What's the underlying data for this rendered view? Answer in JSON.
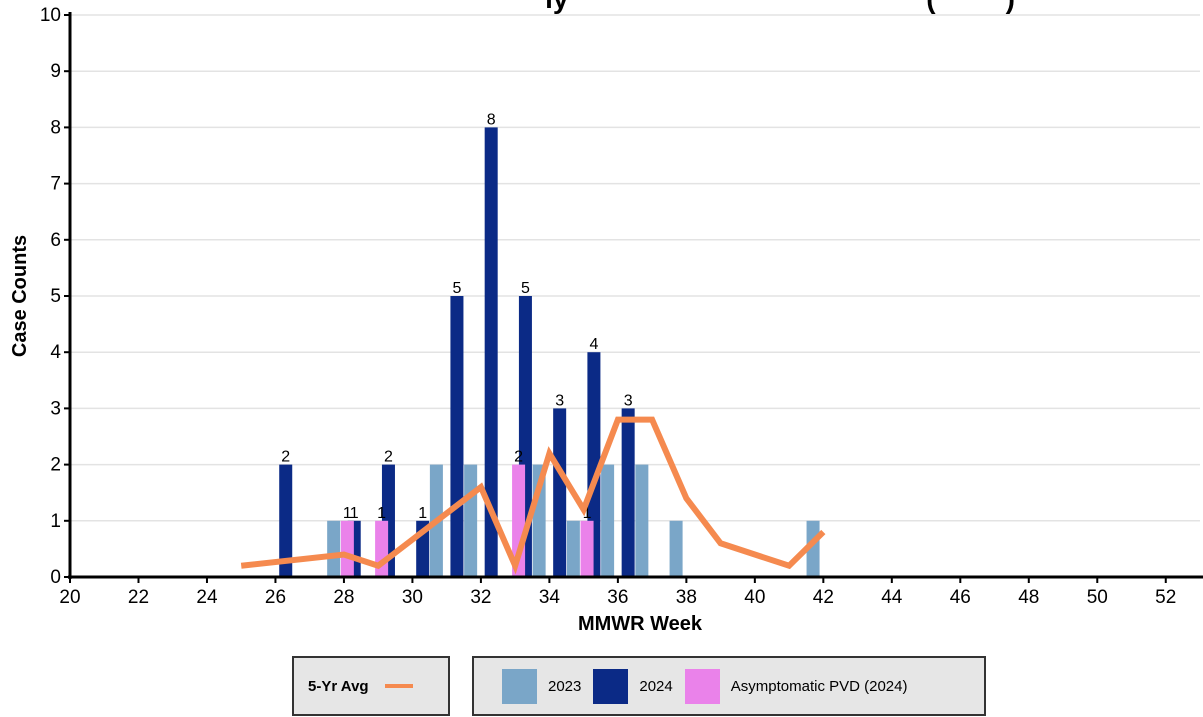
{
  "chart_data": {
    "type": "bar",
    "title": "ly                                              (         )",
    "xlabel": "MMWR Week",
    "ylabel": "Case Counts",
    "xlim": [
      20,
      53
    ],
    "ylim": [
      0,
      10
    ],
    "x_ticks": [
      "20",
      "22",
      "24",
      "26",
      "28",
      "30",
      "32",
      "34",
      "36",
      "38",
      "40",
      "42",
      "44",
      "46",
      "48",
      "50",
      "52"
    ],
    "y_ticks": [
      "0",
      "1",
      "2",
      "3",
      "4",
      "5",
      "6",
      "7",
      "8",
      "9",
      "10"
    ],
    "grid": "horizontal",
    "legend_position": "bottom",
    "series": [
      {
        "name": "2023",
        "color": "#7aa6c8",
        "weeks": [
          27,
          30,
          31,
          33,
          34,
          35,
          36,
          37,
          41
        ],
        "values": [
          1,
          2,
          2,
          2,
          1,
          2,
          2,
          1,
          1
        ]
      },
      {
        "name": "2024",
        "color": "#0b2a86",
        "weeks": [
          26,
          28,
          29,
          30,
          31,
          32,
          33,
          34,
          35,
          36
        ],
        "values": [
          2,
          1,
          2,
          1,
          5,
          8,
          5,
          3,
          4,
          3
        ],
        "labels": [
          "2",
          "1",
          "2",
          "1",
          "5",
          "8",
          "5",
          "3",
          "4",
          "3"
        ]
      },
      {
        "name": "Asymptomatic PVD (2024)",
        "color": "#ea82ea",
        "weeks": [
          28,
          29,
          33,
          35
        ],
        "values": [
          1,
          1,
          2,
          1
        ],
        "labels": [
          "1",
          "1",
          "2",
          "1"
        ]
      }
    ],
    "avg_line": {
      "name": "5-Yr Avg",
      "color": "#f58a4f",
      "x": [
        25,
        28,
        29,
        32,
        33,
        34,
        35,
        36,
        37,
        38,
        39,
        41,
        42
      ],
      "y": [
        0.2,
        0.4,
        0.2,
        1.6,
        0.2,
        2.2,
        1.2,
        2.8,
        2.8,
        1.4,
        0.6,
        0.2,
        0.8
      ]
    }
  },
  "legend": {
    "avg_label": "5-Yr Avg",
    "avg_color": "#f58a4f",
    "items": [
      {
        "label": "2023",
        "color": "#7aa6c8"
      },
      {
        "label": "2024",
        "color": "#0b2a86"
      },
      {
        "label": "Asymptomatic PVD (2024)",
        "color": "#ea82ea"
      }
    ]
  }
}
